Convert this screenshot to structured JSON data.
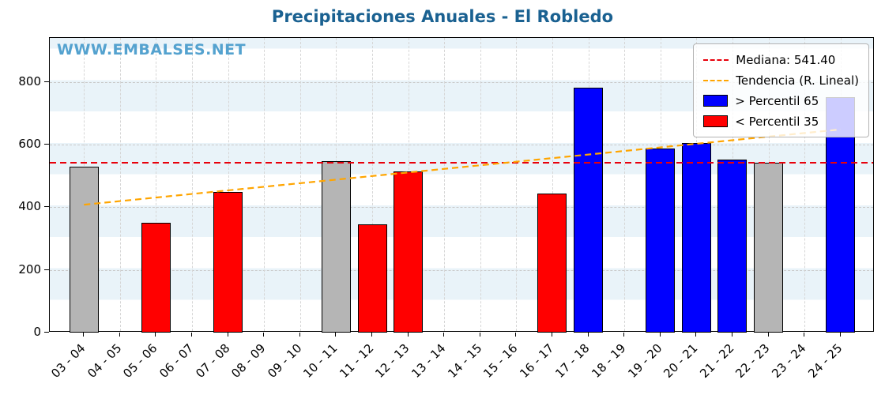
{
  "title": "Precipitaciones Anuales - El Robledo",
  "watermark": "WWW.EMBALSES.NET",
  "legend": {
    "median": "Mediana: 541.40",
    "trend": "Tendencia (R. Lineal)",
    "above": "> Percentil 65",
    "below": "< Percentil 35"
  },
  "colors": {
    "title": "#1a6191",
    "watermark": "#54a2cf",
    "above": "#0000ff",
    "below": "#ff0000",
    "normal": "#b5b5b5",
    "median_line": "#e8000b",
    "trend_line": "#ffa500",
    "bar_edge": "#000000"
  },
  "chart_data": {
    "type": "bar",
    "title": "Precipitaciones Anuales - El Robledo",
    "xlabel": "",
    "ylabel": "",
    "categories": [
      "03 - 04",
      "04 - 05",
      "05 - 06",
      "06 - 07",
      "07 - 08",
      "08 - 09",
      "09 - 10",
      "10 - 11",
      "11 - 12",
      "12 - 13",
      "13 - 14",
      "14 - 15",
      "15 - 16",
      "16 - 17",
      "17 - 18",
      "18 - 19",
      "19 - 20",
      "20 - 21",
      "21 - 22",
      "22 - 23",
      "23 - 24",
      "24 - 25"
    ],
    "values": [
      530,
      null,
      350,
      null,
      448,
      null,
      null,
      548,
      345,
      515,
      null,
      null,
      null,
      443,
      780,
      null,
      588,
      605,
      552,
      542,
      null,
      750
    ],
    "classes": [
      "normal",
      null,
      "below",
      null,
      "below",
      null,
      null,
      "normal",
      "below",
      "below",
      null,
      null,
      null,
      "below",
      "above",
      null,
      "above",
      "above",
      "above",
      "normal",
      null,
      "above"
    ],
    "median": 541.4,
    "trend_line": {
      "start_value": 408,
      "end_value": 648
    },
    "ylim": [
      0,
      940
    ],
    "yticks": [
      0,
      200,
      400,
      600,
      800
    ],
    "grid": true,
    "legend_position": "upper right",
    "legend_entries": [
      "Mediana: 541.40",
      "Tendencia (R. Lineal)",
      "> Percentil 65",
      "< Percentil 35"
    ]
  }
}
